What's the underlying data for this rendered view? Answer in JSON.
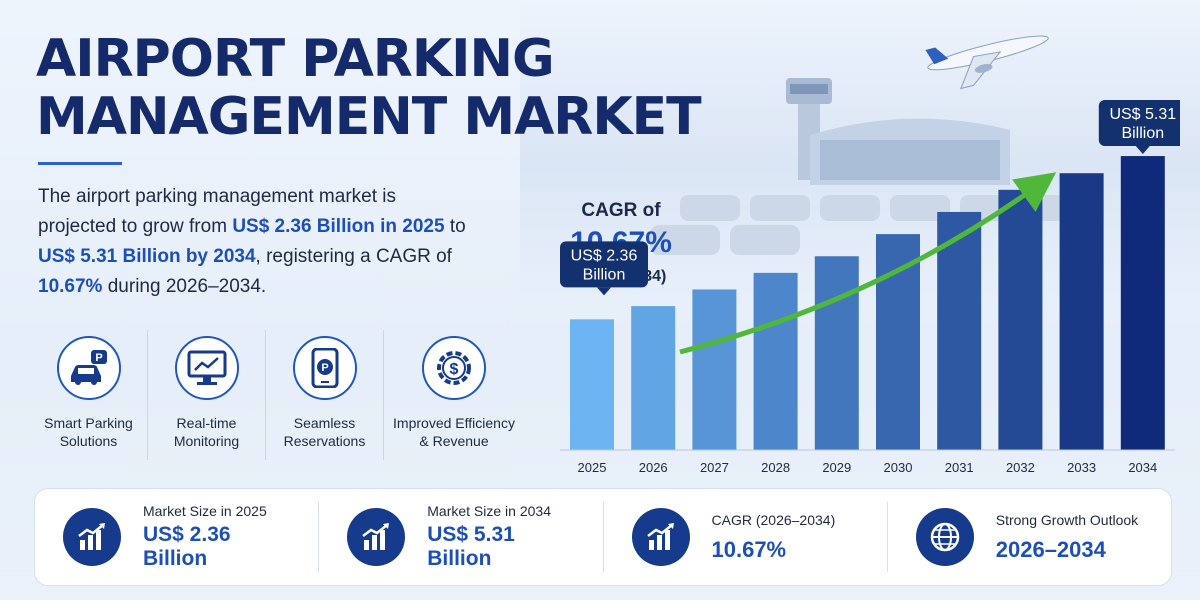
{
  "header": {
    "title_line1": "AIRPORT PARKING",
    "title_line2": "MANAGEMENT MARKET"
  },
  "description": {
    "p1": "The airport parking management market is projected to grow from ",
    "h1": "US$ 2.36 Billion in 2025",
    "p2": " to ",
    "h2": "US$ 5.31 Billion by 2034",
    "p3": ", registering a CAGR of ",
    "h3": "10.67%",
    "p4": " during 2026–2034."
  },
  "features": [
    {
      "line1": "Smart Parking",
      "line2": "Solutions",
      "icon": "car-parking-icon"
    },
    {
      "line1": "Real-time",
      "line2": "Monitoring",
      "icon": "monitor-chart-icon"
    },
    {
      "line1": "Seamless",
      "line2": "Reservations",
      "icon": "phone-parking-icon"
    },
    {
      "line1": "Improved Efficiency",
      "line2": "& Revenue",
      "icon": "dollar-gear-icon"
    }
  ],
  "cagr_callout": {
    "label": "CAGR of",
    "value": "10.67%",
    "period": "(2026–2034)"
  },
  "chart_data": {
    "type": "bar",
    "categories": [
      "2025",
      "2026",
      "2027",
      "2028",
      "2029",
      "2030",
      "2031",
      "2032",
      "2033",
      "2034"
    ],
    "values": [
      2.36,
      2.6,
      2.9,
      3.2,
      3.5,
      3.9,
      4.3,
      4.7,
      5.0,
      5.31
    ],
    "ylim": [
      0,
      5.6
    ],
    "start_label": {
      "line1": "US$ 2.36",
      "line2": "Billion"
    },
    "end_label": {
      "line1": "US$ 5.31",
      "line2": "Billion"
    },
    "colors": {
      "start": "#6cb4f2",
      "end": "#0f2a7a",
      "arrow": "#4fb83a"
    }
  },
  "stats": [
    {
      "label": "Market Size in 2025",
      "value1": "US$ 2.36",
      "value2": "Billion",
      "icon": "growth-chart-icon"
    },
    {
      "label": "Market Size in 2034",
      "value1": "US$ 5.31",
      "value2": "Billion",
      "icon": "growth-chart-icon"
    },
    {
      "label": "CAGR (2026–2034)",
      "value1": "10.67%",
      "value2": "",
      "icon": "growth-chart-icon"
    },
    {
      "label": "Strong Growth Outlook",
      "value1": "2026–2034",
      "value2": "",
      "icon": "globe-icon"
    }
  ]
}
